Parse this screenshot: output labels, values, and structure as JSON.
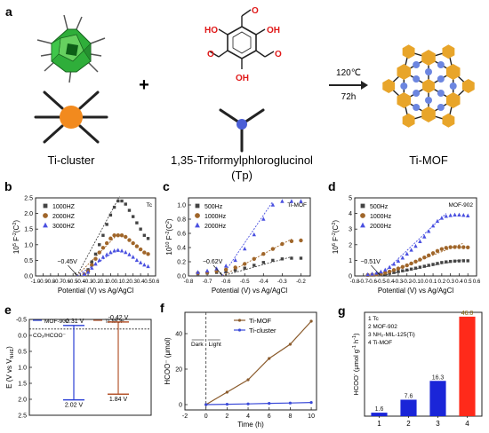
{
  "scheme": {
    "panel_label": "a",
    "ti_cluster_label": "Ti-cluster",
    "linker_label": "1,35-Triformylphloroglucinol",
    "linker_abbrev": "(Tp)",
    "plus": "+",
    "condition_temp": "120℃",
    "condition_time": "72h",
    "product_label": "Ti-MOF",
    "linker_atoms": [
      "O",
      "HO",
      "OH",
      "O",
      "OH",
      "O"
    ]
  },
  "chart_data": [
    {
      "panel": "b",
      "type": "scatter",
      "corner_label": "Tc",
      "xlabel": "Potential (V) vs Ag/AgCl",
      "ylabel_main": "10",
      "ylabel_sup1": "5",
      "ylabel_rest": " F",
      "ylabel_sup2": "-2",
      "ylabel_unit": "(C",
      "ylabel_sup3": "2",
      "ylabel_end": ")",
      "xlim": [
        -1.0,
        0.6
      ],
      "ylim": [
        0,
        2.5
      ],
      "xticks": [
        "-1.0",
        "-0.9",
        "-0.8",
        "-0.7",
        "-0.6",
        "-0.5",
        "-0.4",
        "-0.3",
        "-0.2",
        "-0.1",
        "0.0",
        "0.1",
        "0.2",
        "0.3",
        "0.4",
        "0.5",
        "0.6"
      ],
      "yticks": [
        "0.0",
        "0.5",
        "1.0",
        "1.5",
        "2.0",
        "2.5"
      ],
      "annotation": "−0.45V",
      "series": [
        {
          "name": "1000HZ",
          "color": "#444444",
          "marker": "square",
          "x": [
            -0.35,
            -0.3,
            -0.25,
            -0.2,
            -0.15,
            -0.1,
            -0.05,
            0.0,
            0.05,
            0.1,
            0.15,
            0.2,
            0.25,
            0.3,
            0.35,
            0.4,
            0.45,
            0.5
          ],
          "y": [
            0.05,
            0.2,
            0.45,
            0.7,
            1.0,
            1.3,
            1.65,
            1.95,
            2.2,
            2.4,
            2.4,
            2.3,
            2.1,
            1.9,
            1.7,
            1.5,
            1.3,
            1.2
          ]
        },
        {
          "name": "2000HZ",
          "color": "#a0662a",
          "marker": "circle",
          "x": [
            -0.35,
            -0.3,
            -0.25,
            -0.2,
            -0.15,
            -0.1,
            -0.05,
            0.0,
            0.05,
            0.1,
            0.15,
            0.2,
            0.25,
            0.3,
            0.35,
            0.4,
            0.45,
            0.5
          ],
          "y": [
            0.05,
            0.15,
            0.35,
            0.55,
            0.75,
            0.9,
            1.05,
            1.2,
            1.3,
            1.3,
            1.3,
            1.25,
            1.15,
            1.05,
            0.95,
            0.85,
            0.75,
            0.7
          ]
        },
        {
          "name": "3000HZ",
          "color": "#4a50e0",
          "marker": "triangle",
          "x": [
            -0.35,
            -0.3,
            -0.25,
            -0.2,
            -0.15,
            -0.1,
            -0.05,
            0.0,
            0.05,
            0.1,
            0.15,
            0.2,
            0.25,
            0.3,
            0.35,
            0.4,
            0.45,
            0.5
          ],
          "y": [
            0.05,
            0.12,
            0.25,
            0.38,
            0.5,
            0.6,
            0.68,
            0.75,
            0.8,
            0.82,
            0.8,
            0.75,
            0.68,
            0.6,
            0.5,
            0.42,
            0.35,
            0.3
          ]
        }
      ],
      "fit_lines": [
        {
          "color": "#444444",
          "x": [
            -0.45,
            0.12
          ],
          "y": [
            0,
            2.55
          ]
        },
        {
          "color": "#a0662a",
          "x": [
            -0.45,
            0.1
          ],
          "y": [
            0,
            1.35
          ]
        },
        {
          "color": "#4a50e0",
          "x": [
            -0.45,
            0.1
          ],
          "y": [
            0,
            0.85
          ]
        }
      ]
    },
    {
      "panel": "c",
      "type": "scatter",
      "corner_label": "Ti-MOF",
      "xlabel": "Potential (V) vs Ag/AgCl",
      "ylabel_main": "10",
      "ylabel_sup1": "10",
      "ylabel_rest": " F",
      "ylabel_sup2": "-2",
      "ylabel_unit": "(C",
      "ylabel_sup3": "2",
      "ylabel_end": ")",
      "xlim": [
        -0.8,
        -0.15
      ],
      "ylim": [
        0,
        1.1
      ],
      "xticks": [
        "-0.8",
        "-0.7",
        "-0.6",
        "-0.5",
        "-0.4",
        "-0.3",
        "-0.2"
      ],
      "yticks": [
        "0.0",
        "0.2",
        "0.4",
        "0.6",
        "0.8",
        "1.0"
      ],
      "annotation": "−0.62V",
      "series": [
        {
          "name": "500Hz",
          "color": "#444444",
          "marker": "square",
          "x": [
            -0.75,
            -0.7,
            -0.65,
            -0.6,
            -0.55,
            -0.5,
            -0.45,
            -0.4,
            -0.35,
            -0.3,
            -0.25,
            -0.2
          ],
          "y": [
            0.03,
            0.04,
            0.05,
            0.06,
            0.08,
            0.11,
            0.15,
            0.19,
            0.22,
            0.24,
            0.25,
            0.25
          ]
        },
        {
          "name": "1000Hz",
          "color": "#a0662a",
          "marker": "circle",
          "x": [
            -0.75,
            -0.7,
            -0.65,
            -0.6,
            -0.55,
            -0.5,
            -0.45,
            -0.4,
            -0.35,
            -0.3,
            -0.25,
            -0.2
          ],
          "y": [
            0.04,
            0.05,
            0.07,
            0.09,
            0.12,
            0.17,
            0.24,
            0.31,
            0.38,
            0.45,
            0.49,
            0.5
          ]
        },
        {
          "name": "2000Hz",
          "color": "#4a50e0",
          "marker": "triangle",
          "x": [
            -0.75,
            -0.7,
            -0.65,
            -0.6,
            -0.55,
            -0.5,
            -0.45,
            -0.4,
            -0.35,
            -0.3,
            -0.25,
            -0.2
          ],
          "y": [
            0.05,
            0.07,
            0.1,
            0.14,
            0.22,
            0.38,
            0.58,
            0.8,
            1.0,
            1.05,
            1.05,
            1.05
          ]
        }
      ],
      "fit_lines": [
        {
          "color": "#444444",
          "x": [
            -0.62,
            -0.25
          ],
          "y": [
            0,
            0.27
          ]
        },
        {
          "color": "#a0662a",
          "x": [
            -0.62,
            -0.25
          ],
          "y": [
            0,
            0.52
          ]
        },
        {
          "color": "#4a50e0",
          "x": [
            -0.62,
            -0.35
          ],
          "y": [
            0,
            1.05
          ]
        }
      ]
    },
    {
      "panel": "d",
      "type": "scatter",
      "corner_label": "MOF-902",
      "xlabel": "Potential (V) vs Ag/AgCl",
      "ylabel_main": "10",
      "ylabel_sup1": "6",
      "ylabel_rest": " F",
      "ylabel_sup2": "-2",
      "ylabel_unit": "(C",
      "ylabel_sup3": "2",
      "ylabel_end": ")",
      "xlim": [
        -0.8,
        0.6
      ],
      "ylim": [
        0,
        5
      ],
      "xticks": [
        "-0.8",
        "-0.7",
        "-0.6",
        "-0.5",
        "-0.4",
        "-0.3",
        "-0.2",
        "-0.1",
        "0.0",
        "0.1",
        "0.2",
        "0.3",
        "0.4",
        "0.5",
        "0.6"
      ],
      "yticks": [
        "0",
        "1",
        "2",
        "3",
        "4",
        "5"
      ],
      "annotation": "−0.51V",
      "series": [
        {
          "name": "500Hz",
          "color": "#444444",
          "marker": "square",
          "x": [
            -0.65,
            -0.6,
            -0.55,
            -0.5,
            -0.45,
            -0.4,
            -0.35,
            -0.3,
            -0.25,
            -0.2,
            -0.15,
            -0.1,
            -0.05,
            0.0,
            0.05,
            0.1,
            0.15,
            0.2,
            0.25,
            0.3,
            0.35,
            0.4,
            0.45,
            0.5
          ],
          "y": [
            0.05,
            0.06,
            0.08,
            0.1,
            0.13,
            0.17,
            0.22,
            0.28,
            0.33,
            0.38,
            0.44,
            0.5,
            0.56,
            0.62,
            0.68,
            0.74,
            0.8,
            0.86,
            0.9,
            0.93,
            0.95,
            0.96,
            0.97,
            0.97
          ]
        },
        {
          "name": "1000Hz",
          "color": "#a0662a",
          "marker": "circle",
          "x": [
            -0.65,
            -0.6,
            -0.55,
            -0.5,
            -0.45,
            -0.4,
            -0.35,
            -0.3,
            -0.25,
            -0.2,
            -0.15,
            -0.1,
            -0.05,
            0.0,
            0.05,
            0.1,
            0.15,
            0.2,
            0.25,
            0.3,
            0.35,
            0.4,
            0.45,
            0.5
          ],
          "y": [
            0.06,
            0.08,
            0.1,
            0.14,
            0.2,
            0.28,
            0.38,
            0.48,
            0.58,
            0.68,
            0.8,
            0.92,
            1.05,
            1.18,
            1.32,
            1.46,
            1.6,
            1.72,
            1.8,
            1.84,
            1.85,
            1.85,
            1.84,
            1.83
          ]
        },
        {
          "name": "2000Hz",
          "color": "#4a50e0",
          "marker": "triangle",
          "x": [
            -0.65,
            -0.6,
            -0.55,
            -0.5,
            -0.45,
            -0.4,
            -0.35,
            -0.3,
            -0.25,
            -0.2,
            -0.15,
            -0.1,
            -0.05,
            0.0,
            0.05,
            0.1,
            0.15,
            0.2,
            0.25,
            0.3,
            0.35,
            0.4,
            0.45,
            0.5
          ],
          "y": [
            0.08,
            0.12,
            0.18,
            0.26,
            0.38,
            0.55,
            0.75,
            0.95,
            1.15,
            1.4,
            1.65,
            1.9,
            2.2,
            2.5,
            2.85,
            3.2,
            3.5,
            3.7,
            3.82,
            3.87,
            3.9,
            3.9,
            3.88,
            3.85
          ]
        }
      ],
      "fit_lines": [
        {
          "color": "#444444",
          "x": [
            -0.51,
            0.45
          ],
          "y": [
            0,
            1.05
          ]
        },
        {
          "color": "#a0662a",
          "x": [
            -0.51,
            0.45
          ],
          "y": [
            0,
            2.1
          ]
        },
        {
          "color": "#4a50e0",
          "x": [
            -0.51,
            0.25
          ],
          "y": [
            0,
            4.0
          ]
        }
      ]
    },
    {
      "panel": "e",
      "type": "bar",
      "ylabel": "E (V vs V",
      "ylabel_sub": "NHE",
      "ylabel_end": ")",
      "ylim": [
        -0.5,
        2.5
      ],
      "yticks": [
        "-0.5",
        "0.0",
        "0.5",
        "1.0",
        "1.5",
        "2.0",
        "2.5"
      ],
      "reference_label": "CO₂/HCOO⁻",
      "reference_value": -0.2,
      "series": [
        {
          "name": "MOF-902",
          "color": "#2a3fd6",
          "top": -0.31,
          "bottom": 2.02,
          "top_label": "-0.31 V",
          "bottom_label": "2.02 V"
        },
        {
          "name": "Ti-MOF",
          "color": "#b4562e",
          "top": -0.42,
          "bottom": 1.84,
          "top_label": "-0.42 V",
          "bottom_label": "1.84 V"
        }
      ]
    },
    {
      "panel": "f",
      "type": "line",
      "xlabel": "Time (h)",
      "ylabel": "HCOO⁻ (μmol)",
      "xlim": [
        -2,
        10.5
      ],
      "ylim": [
        -3,
        52
      ],
      "xticks": [
        "-2",
        "0",
        "2",
        "4",
        "6",
        "8",
        "10"
      ],
      "yticks": [
        "0",
        "20",
        "40"
      ],
      "dark_label": "Dark",
      "light_label": "Light",
      "series": [
        {
          "name": "Ti-MOF",
          "color": "#8a5a2b",
          "x": [
            0,
            2,
            4,
            6,
            8,
            10
          ],
          "y": [
            0,
            7,
            14,
            26,
            34,
            47
          ]
        },
        {
          "name": "Ti-cluster",
          "color": "#3a4ad8",
          "x": [
            0,
            2,
            4,
            6,
            8,
            10
          ],
          "y": [
            0,
            0.2,
            0.4,
            0.7,
            0.9,
            1.2
          ]
        }
      ]
    },
    {
      "panel": "g",
      "type": "bar",
      "ylabel_main": "HCOO",
      "ylabel_sup": "-",
      "ylabel_unit": " (μmol g",
      "ylabel_sup2": "-1",
      "ylabel_mid": " h",
      "ylabel_sup3": "-1",
      "ylabel_end": ")",
      "ylim": [
        0,
        48
      ],
      "categories": [
        "1",
        "2",
        "3",
        "4"
      ],
      "values": [
        1.6,
        7.6,
        16.3,
        46.0
      ],
      "value_labels": [
        "1.6",
        "7.6",
        "16.3",
        "46.0"
      ],
      "colors": [
        "#1a25d8",
        "#1a25d8",
        "#1a25d8",
        "#ff2a1a"
      ],
      "legend": [
        "1 Tc",
        "2 MOF-902",
        "3 NH₂-MIL-125(Ti)",
        "4 Ti-MOF"
      ]
    }
  ]
}
